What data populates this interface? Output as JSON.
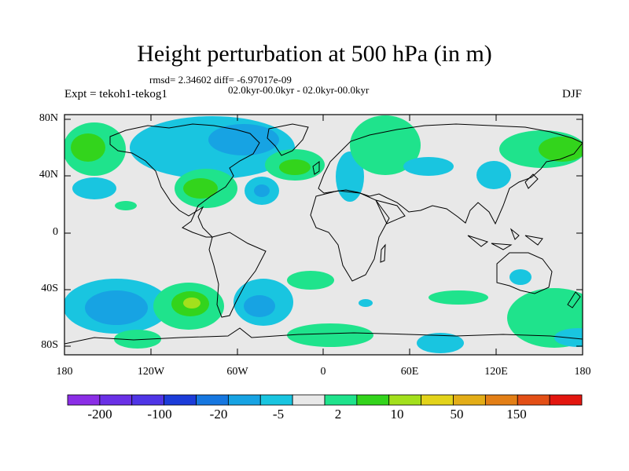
{
  "title": "Height perturbation at 500 hPa (in m)",
  "stats_line": "rmsd= 2.34602 diff= -6.97017e-09",
  "period_line": "02.0kyr-00.0kyr - 02.0kyr-00.0kyr",
  "experiment": "Expt = tekoh1-tekog1",
  "season": "DJF",
  "lat_ticks": [
    "80N",
    "40N",
    "0",
    "40S",
    "80S"
  ],
  "lon_ticks": [
    "180",
    "120W",
    "60W",
    "0",
    "60E",
    "120E",
    "180"
  ],
  "colorbar": {
    "colors": [
      "#8b2ee6",
      "#6a30e6",
      "#4f35e6",
      "#1c3cd9",
      "#1677e0",
      "#17a3e3",
      "#19c5e0",
      "#e8e8e8",
      "#1fe38c",
      "#33d41c",
      "#a3e01c",
      "#e3d31a",
      "#e3ad17",
      "#e37f16",
      "#e34f16",
      "#e3160f"
    ],
    "labels": [
      "-200",
      "-100",
      "-20",
      "-5",
      "2",
      "10",
      "50",
      "150"
    ]
  },
  "map_colors": {
    "background": "#e8e8e8",
    "light_blue": "#19c5e0",
    "mid_blue": "#17a3e3",
    "teal_green": "#1fe38c",
    "green": "#33d41c",
    "yellow_green": "#a3e01c"
  }
}
